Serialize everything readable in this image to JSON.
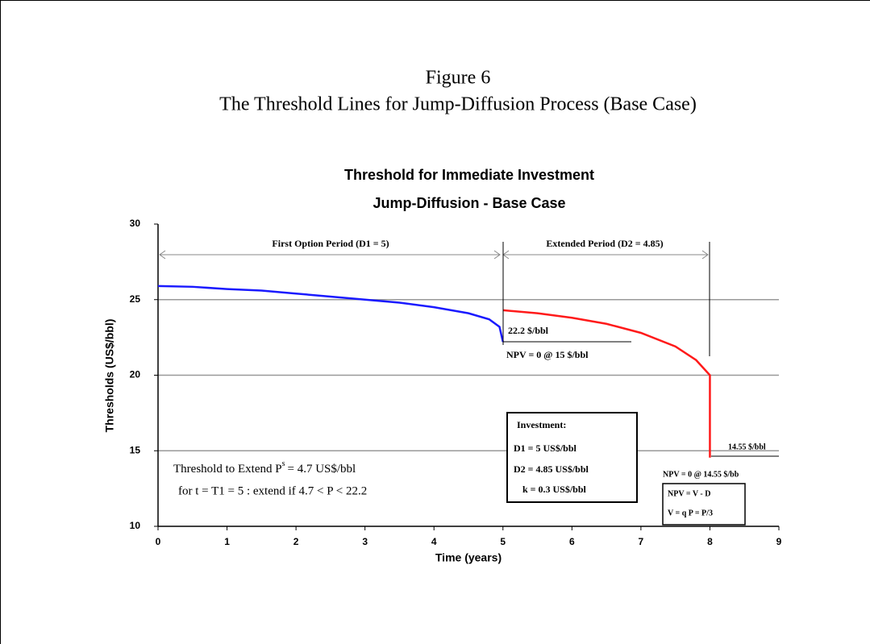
{
  "caption": {
    "label": "Figure 6",
    "title": "The Threshold Lines for Jump-Diffusion Process (Base Case)"
  },
  "chart_data": {
    "type": "line",
    "title": "Threshold for Immediate Investment",
    "subtitle": "Jump-Diffusion - Base Case",
    "x_label": "Time (years)",
    "y_label": "Thresholds (US$/bbl)",
    "xlim": [
      0,
      9
    ],
    "xticks": [
      0,
      1,
      2,
      3,
      4,
      5,
      6,
      7,
      8,
      9
    ],
    "ylim": [
      10,
      30
    ],
    "yticks": [
      10,
      15,
      20,
      25,
      30
    ],
    "grid": true,
    "series": [
      {
        "color": "#1a1aff",
        "x": [
          0,
          0.5,
          1,
          1.5,
          2,
          2.5,
          3,
          3.5,
          4,
          4.5,
          4.8,
          4.95,
          5
        ],
        "values": [
          25.9,
          25.85,
          25.7,
          25.6,
          25.4,
          25.2,
          25.0,
          24.8,
          24.5,
          24.1,
          23.7,
          23.2,
          22.2
        ]
      },
      {
        "color": "#ff1a1a",
        "x": [
          5,
          5.5,
          6,
          6.5,
          7,
          7.5,
          7.8,
          8,
          8
        ],
        "values": [
          24.3,
          24.1,
          23.8,
          23.4,
          22.8,
          21.9,
          21.0,
          20.0,
          14.55
        ]
      }
    ],
    "annotations": {
      "first_period": "First Option Period (D1 = 5)",
      "extended_period": "Extended Period (D2 = 4.85)",
      "threshold_1": "22.2 $/bbl",
      "npv_1": "NPV = 0 @ 15 $/bbl",
      "investment": [
        "Investment:",
        "D1 = 5 US$/bbl",
        "D2 = 4.85 US$/bbl",
        "k = 0.3 US$/bbl"
      ],
      "threshold_2": "14.55 $/bbl",
      "npv_2": "NPV = 0 @ 14.55 $/bb",
      "formula": [
        "NPV = V - D",
        "V = q P = P/3"
      ],
      "extend_1": {
        "before": "Threshold to Extend P",
        "sup": "s",
        "after": "=  4.7  US$/bbl"
      },
      "extend_2": "for t = T1 = 5 : extend if  4.7 < P < 22.2"
    }
  }
}
